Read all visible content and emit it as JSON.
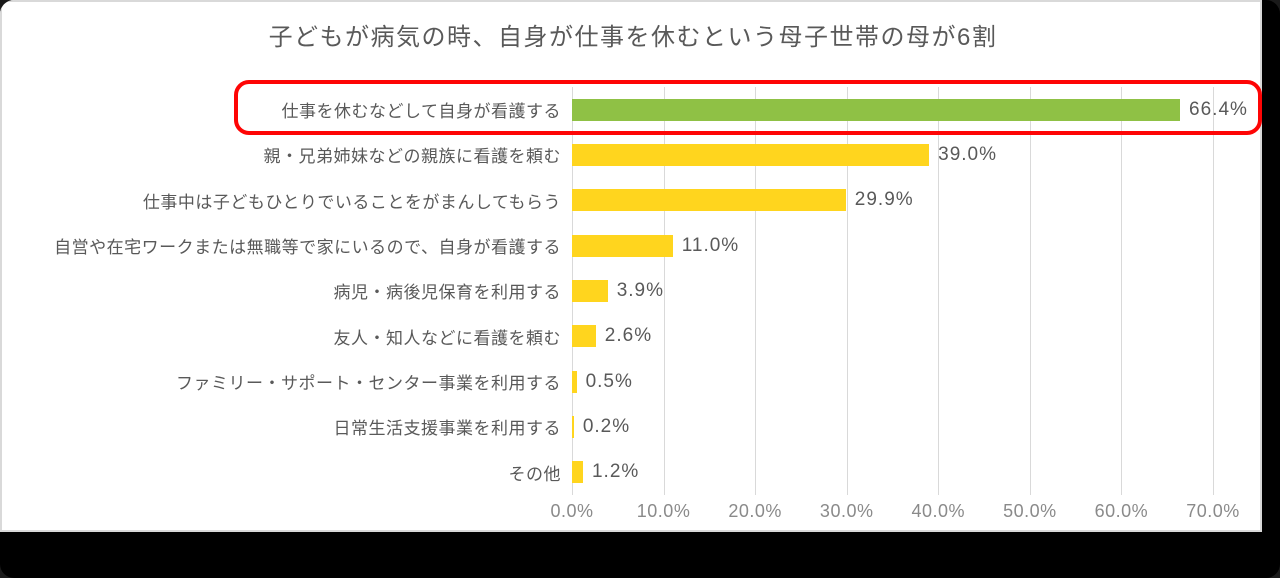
{
  "title": "子どもが病気の時、自身が仕事を休むという母子世帯の母が6割",
  "colors": {
    "highlight_bar": "#8FC145",
    "default_bar": "#FFD51E",
    "annotation_red": "#FE0505",
    "gridline": "#D9D9D9",
    "label_text": "#595959",
    "tick_text": "#8A8A8A",
    "canvas_border": "#D9D9D9",
    "outer_band": "#000000"
  },
  "chart_data": {
    "type": "bar",
    "orientation": "horizontal",
    "title": "子どもが病気の時、自身が仕事を休むという母子世帯の母が6割",
    "categories": [
      "仕事を休むなどして自身が看護する",
      "親・兄弟姉妹などの親族に看護を頼む",
      "仕事中は子どもひとりでいることをがまんしてもらう",
      "自営や在宅ワークまたは無職等で家にいるので、自身が看護する",
      "病児・病後児保育を利用する",
      "友人・知人などに看護を頼む",
      "ファミリー・サポート・センター事業を利用する",
      "日常生活支援事業を利用する",
      "その他"
    ],
    "values": [
      66.4,
      39.0,
      29.9,
      11.0,
      3.9,
      2.6,
      0.5,
      0.2,
      1.2
    ],
    "value_labels": [
      "66.4%",
      "39.0%",
      "29.9%",
      "11.0%",
      "3.9%",
      "2.6%",
      "0.5%",
      "0.2%",
      "1.2%"
    ],
    "highlight_index": 0,
    "annotation": "red rounded box around first category row",
    "x_ticks": [
      "0.0%",
      "10.0%",
      "20.0%",
      "30.0%",
      "40.0%",
      "50.0%",
      "60.0%",
      "70.0%"
    ],
    "xlim": [
      0,
      70
    ],
    "grid": true,
    "legend": false
  }
}
